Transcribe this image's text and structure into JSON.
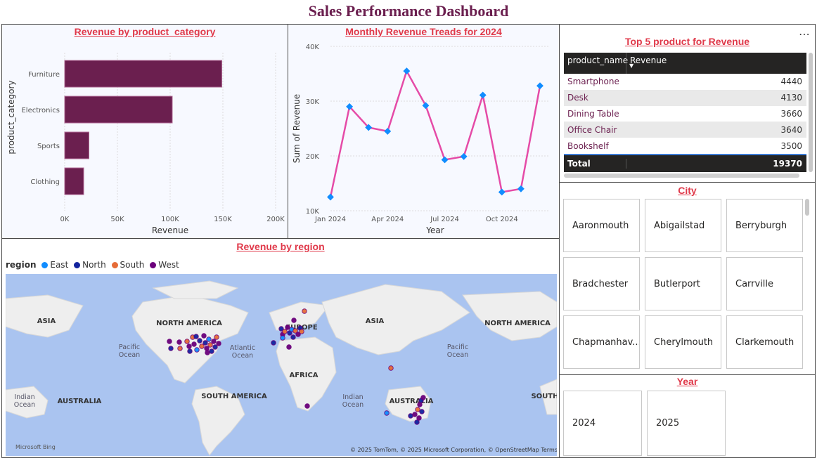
{
  "dashboard_title": "Sales Performance Dashboard",
  "colors": {
    "bar": "#6b1f4f",
    "line": "#e54ba7",
    "marker": "#118dff",
    "title_accent": "#e0394a"
  },
  "category_chart": {
    "title": "Revenue by product_category",
    "chart_data": {
      "type": "bar",
      "orientation": "horizontal",
      "categories": [
        "Furniture",
        "Electronics",
        "Sports",
        "Clothing"
      ],
      "values": [
        149000,
        102000,
        23000,
        18000
      ],
      "xlabel": "Revenue",
      "ylabel": "product_category",
      "xlim": [
        0,
        200000
      ],
      "xticks": [
        "0K",
        "50K",
        "100K",
        "150K",
        "200K"
      ],
      "grid": true
    }
  },
  "monthly_chart": {
    "title": "Monthly Revenue Treads for 2024",
    "chart_data": {
      "type": "line",
      "x": [
        "2024-01",
        "2024-02",
        "2024-03",
        "2024-04",
        "2024-05",
        "2024-06",
        "2024-07",
        "2024-08",
        "2024-09",
        "2024-10",
        "2024-11",
        "2024-12"
      ],
      "values": [
        12500,
        29000,
        25200,
        24500,
        35500,
        29200,
        19300,
        19900,
        31100,
        13400,
        14000,
        32800
      ],
      "xlabel": "Year",
      "ylabel": "Sum of Revenue",
      "ylim": [
        10000,
        40000
      ],
      "yticks": [
        "10K",
        "20K",
        "30K",
        "40K"
      ],
      "xticks": [
        "Jan 2024",
        "Apr 2024",
        "Jul 2024",
        "Oct 2024"
      ],
      "grid": true
    }
  },
  "top_products": {
    "title": "Top 5 product for Revenue",
    "more_icon": "ellipsis-icon",
    "columns": [
      "product_name",
      "Revenue"
    ],
    "rows": [
      {
        "name": "Smartphone",
        "revenue": "4440"
      },
      {
        "name": "Desk",
        "revenue": "4130"
      },
      {
        "name": "Dining Table",
        "revenue": "3660"
      },
      {
        "name": "Office Chair",
        "revenue": "3640"
      },
      {
        "name": "Bookshelf",
        "revenue": "3500"
      }
    ],
    "total_label": "Total",
    "total_value": "19370"
  },
  "city_slicer": {
    "title": "City",
    "items": [
      "Aaronmouth",
      "Abigailstad",
      "Berryburgh",
      "Bradchester",
      "Butlerport",
      "Carrville",
      "Chapmanhav...",
      "Cherylmouth",
      "Clarkemouth"
    ]
  },
  "year_slicer": {
    "title": "Year",
    "items": [
      "2024",
      "2025"
    ]
  },
  "region_map": {
    "title": "Revenue by region",
    "legend_title": "region",
    "legend": [
      {
        "name": "East",
        "color": "#118dff"
      },
      {
        "name": "North",
        "color": "#12239e"
      },
      {
        "name": "South",
        "color": "#e66c37"
      },
      {
        "name": "West",
        "color": "#6b007b"
      }
    ],
    "labels": {
      "asia_left": "ASIA",
      "north_america": "NORTH AMERICA",
      "europe": "EUROPE",
      "asia": "ASIA",
      "north_america_right": "NORTH AMERICA",
      "pacific_left": "Pacific\nOcean",
      "atlantic": "Atlantic\nOcean",
      "africa": "AFRICA",
      "pacific_right": "Pacific\nOcean",
      "indian_left": "Indian\nOcean",
      "australia_left": "AUSTRALIA",
      "south_america": "SOUTH AMERICA",
      "indian_right": "Indian\nOcean",
      "australia": "AUSTRALIA",
      "south": "SOUTH"
    },
    "attribution": "© 2025 TomTom, © 2025 Microsoft Corporation, © OpenStreetMap  Terms",
    "brand": "Microsoft Bing"
  }
}
